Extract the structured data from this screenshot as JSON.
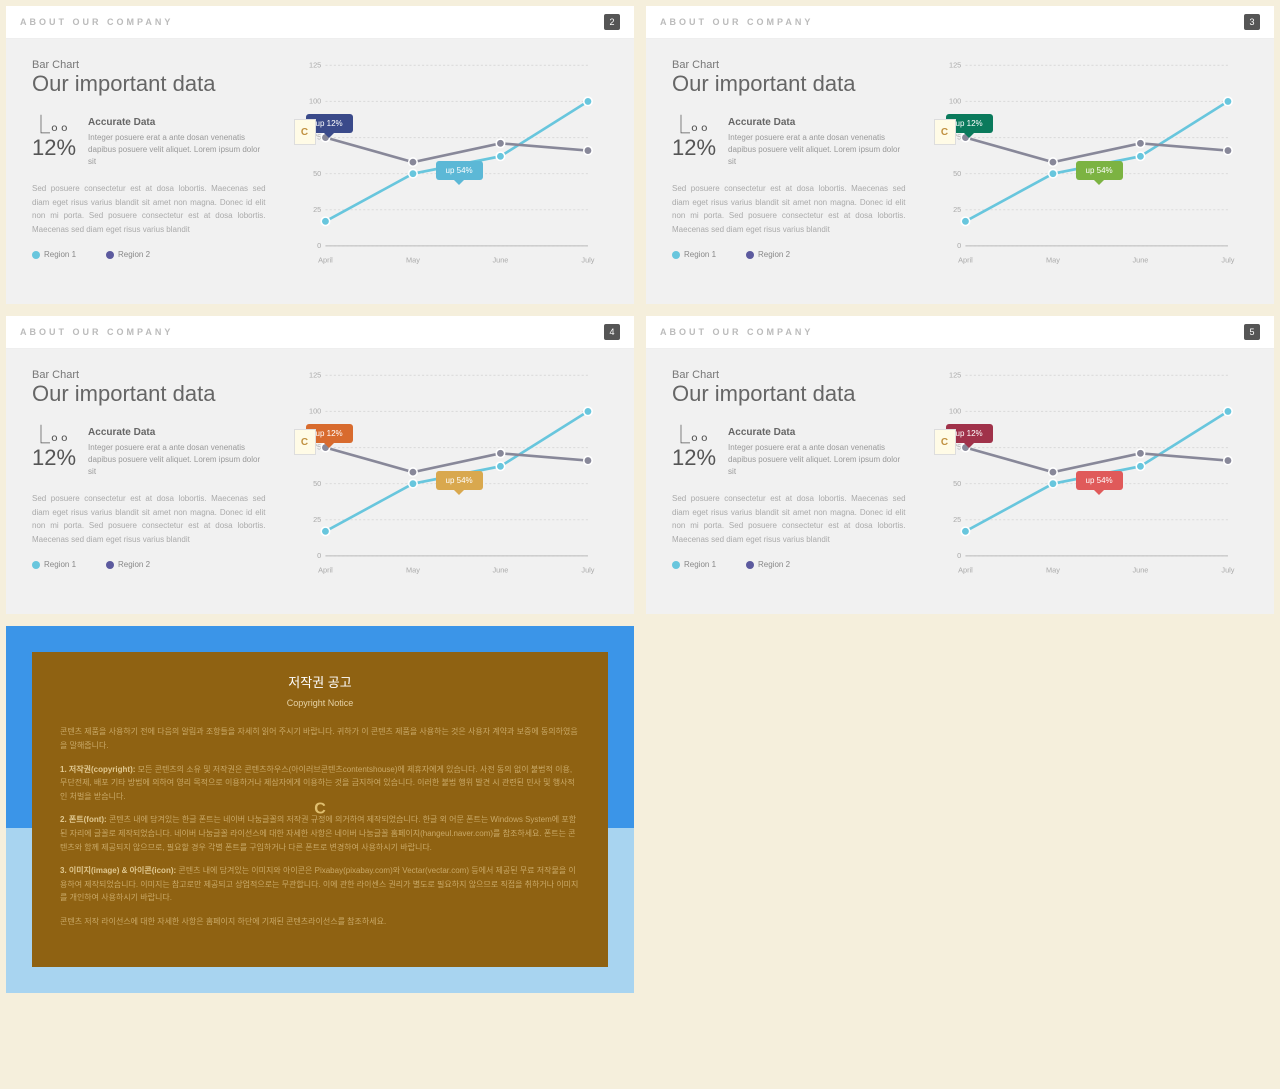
{
  "slides": [
    {
      "num": "2",
      "callout1_color": "#3a4a8a",
      "callout2_color": "#5cb8d6"
    },
    {
      "num": "3",
      "callout1_color": "#0a7a5c",
      "callout2_color": "#7cb342"
    },
    {
      "num": "4",
      "callout1_color": "#d86b2e",
      "callout2_color": "#d9a84e"
    },
    {
      "num": "5",
      "callout1_color": "#a0324a",
      "callout2_color": "#e05a5a"
    }
  ],
  "common": {
    "header": "ABOUT OUR COMPANY",
    "subtitle": "Bar Chart",
    "title": "Our important data",
    "pct": "12%",
    "stat_title": "Accurate Data",
    "stat_text": "Integer posuere erat a ante dosan venenatis dapibus posuere velit aliquet. Lorem ipsum dolor sit",
    "para": "Sed posuere consectetur est at dosa lobortis. Maecenas sed diam eget risus varius blandit sit amet non magna. Donec id elit non mi porta. Sed posuere consectetur est at dosa lobortis. Maecenas sed diam eget risus varius blandit",
    "legend1": "Region 1",
    "legend2": "Region 2",
    "legend1_color": "#68c6dd",
    "legend2_color": "#5c5a9e",
    "callout1_text": "up 12%",
    "callout2_text": "up 54%"
  },
  "chart": {
    "type": "line",
    "x_labels": [
      "April",
      "May",
      "June",
      "July"
    ],
    "y_ticks": [
      0,
      25,
      50,
      75,
      100,
      125
    ],
    "ylim": [
      0,
      125
    ],
    "series": [
      {
        "name": "Region 1",
        "color": "#68c6dd",
        "points": [
          17,
          50,
          62,
          100
        ]
      },
      {
        "name": "Region 2",
        "color": "#888899",
        "points": [
          75,
          58,
          71,
          66
        ]
      }
    ],
    "line_width": 3,
    "marker_radius": 4,
    "background": "#f1f1f1",
    "grid_color": "#dcdcdc",
    "axis_color": "#bbbbbb",
    "label_color": "#aaaaaa",
    "label_fontsize": 7
  },
  "copyright": {
    "title": "저작권 공고",
    "subtitle": "Copyright Notice",
    "intro": "콘텐츠 제품을 사용하기 전에 다음의 알림과 조항들을 자세히 읽어 주시기 바랍니다. 귀하가 이 콘텐츠 제품을 사용하는 것은 사용자 계약과 보증에 동의하였음을 말해줍니다.",
    "p1_head": "1. 저작권(copyright): ",
    "p1": "모든 콘텐츠의 소유 및 저작권은 콘텐츠하우스(아이러브콘텐츠contentshouse)에 제휴자에게 있습니다. 사전 동의 없이 불법적 이용, 무단전제, 배포 기타 방법에 의하여 영리 목적으로 이용하거나 제삼자에게 이용하는 것을 금지하여 있습니다. 이러한 불법 행위 발견 시 관련된 민사 및 행사적인 처벌을 받습니다.",
    "p2_head": "2. 폰트(font): ",
    "p2": "콘텐츠 내에 담겨있는 한글 폰트는 네이버 나눔글꼴의 저작권 규정에 의거하여 제작되었습니다. 한글 외 어문 폰트는 Windows System에 포함된 자리에 글꼴로 제작되었습니다. 네이버 나눔글꼴 라이선스에 대한 자세한 사항은 네이버 나눔글꼴 홈페이지(hangeul.naver.com)를 참조하세요. 폰트는 콘텐츠와 함께 제공되지 않으므로, 필요할 경우 각별 폰트를 구입하거나 다른 폰트로 변경하여 사용하시기 바랍니다.",
    "p3_head": "3. 이미지(image) & 아이콘(icon): ",
    "p3": "콘텐츠 내에 담겨있는 이미지와 아이콘은 Pixabay(pixabay.com)와 Vectar(vectar.com) 등에서 제공된 무료 저작물을 이용하여 제작되었습니다. 이미지는 참고로만 제공되고 상업적으로는 무관합니다. 이에 관한 라이센스 권리가 별도로 필요하지 않으므로 직접을 취하거나 이미지를 개인하여 사용하시기 바랍니다.",
    "outro": "콘텐츠 저작 라이선스에 대한 자세한 사항은 홈페이지 하단에 기재된 콘텐츠라이선스를 참조하세요."
  }
}
